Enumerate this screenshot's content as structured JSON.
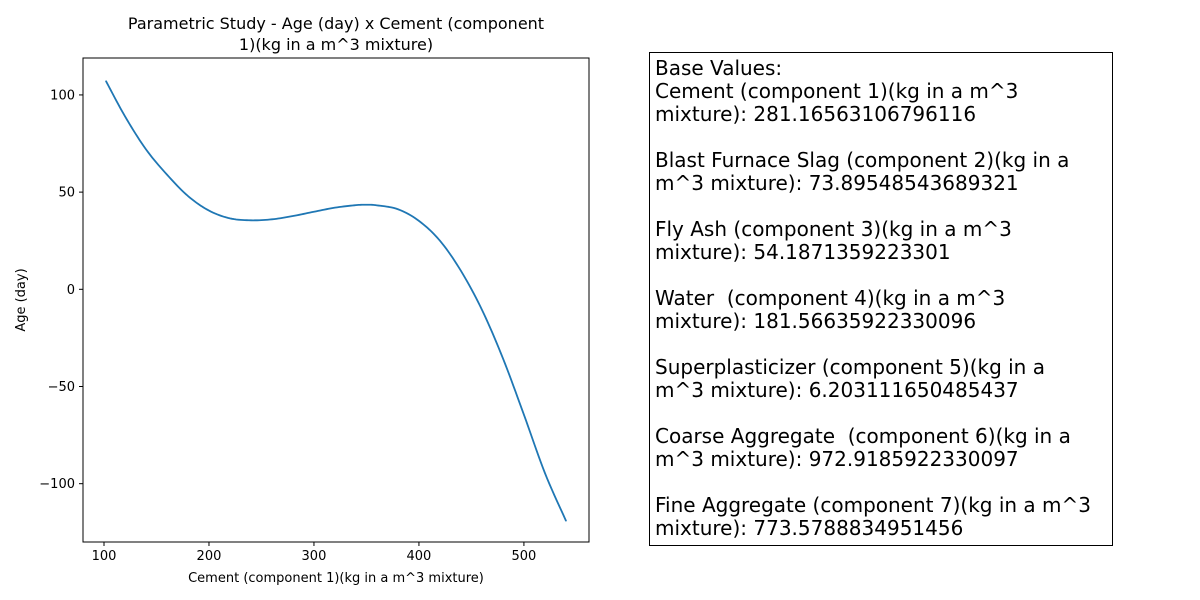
{
  "chart_data": {
    "type": "line",
    "title": "Parametric Study - Age (day) x Cement (component\n1)(kg in a m^3 mixture)",
    "xlabel": "Cement (component 1)(kg in a m^3 mixture)",
    "ylabel": "Age (day)",
    "xlim": [
      80,
      562
    ],
    "ylim": [
      -130,
      119
    ],
    "xticks": [
      100,
      200,
      300,
      400,
      500
    ],
    "yticks": [
      100,
      50,
      0,
      -50,
      -100
    ],
    "xtick_labels": [
      "100",
      "200",
      "300",
      "400",
      "500"
    ],
    "ytick_labels": [
      "100",
      "50",
      "0",
      "−50",
      "−100"
    ],
    "grid": false,
    "series": [
      {
        "color": "#1f77b4",
        "x": [
          102,
          120,
          140,
          160,
          180,
          200,
          220,
          240,
          260,
          280,
          300,
          320,
          340,
          350,
          360,
          380,
          400,
          420,
          440,
          460,
          480,
          500,
          520,
          540
        ],
        "y": [
          107,
          89,
          72,
          59,
          48,
          40.5,
          36.5,
          35.5,
          36,
          37.7,
          39.9,
          42,
          43.3,
          43.5,
          43.2,
          41.2,
          35.2,
          25,
          9.5,
          -10.5,
          -35.5,
          -64.5,
          -94.5,
          -119
        ]
      }
    ]
  },
  "info_box": {
    "heading": "Base Values:",
    "entries": [
      {
        "line1": "Cement (component 1)(kg in a m^3",
        "line2": "mixture): 281.16563106796116"
      },
      {
        "line1": "Blast Furnace Slag (component 2)(kg in a",
        "line2": "m^3 mixture): 73.89548543689321"
      },
      {
        "line1": "Fly Ash (component 3)(kg in a m^3",
        "line2": "mixture): 54.1871359223301"
      },
      {
        "line1": "Water  (component 4)(kg in a m^3",
        "line2": "mixture): 181.56635922330096"
      },
      {
        "line1": "Superplasticizer (component 5)(kg in a",
        "line2": "m^3 mixture): 6.203111650485437"
      },
      {
        "line1": "Coarse Aggregate  (component 6)(kg in a",
        "line2": "m^3 mixture): 972.9185922330097"
      },
      {
        "line1": "Fine Aggregate (component 7)(kg in a m^3",
        "line2": "mixture): 773.5788834951456"
      }
    ]
  }
}
